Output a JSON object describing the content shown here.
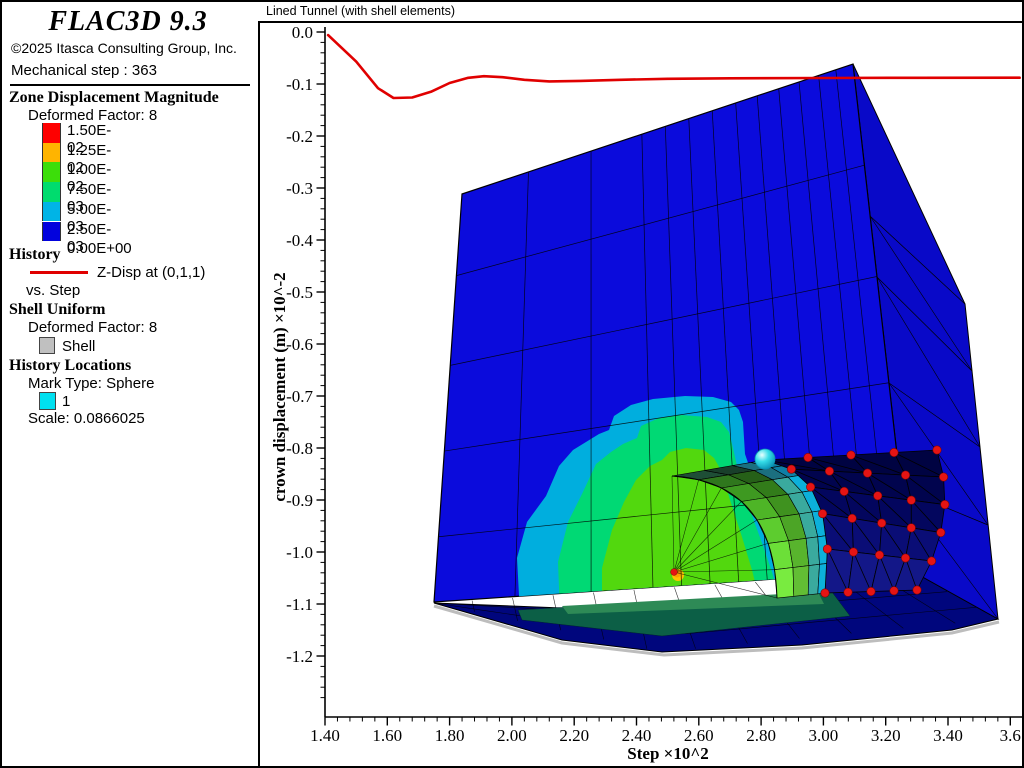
{
  "header": {
    "app_title": "FLAC3D 9.3",
    "copyright": "©2025 Itasca Consulting Group, Inc.",
    "step_label": "Mechanical step : 363"
  },
  "title_bar": {
    "title": "Lined Tunnel (with shell elements)"
  },
  "legend": {
    "zone": {
      "heading": "Zone Displacement Magnitude",
      "deformed_factor": "Deformed Factor: 8",
      "colorscale_labels": [
        "1.50E-02",
        "1.25E-02",
        "1.00E-02",
        "7.50E-03",
        "5.00E-03",
        "2.50E-03",
        "0.00E+00"
      ],
      "colorscale_band_colors": [
        "#fe0000",
        "#ffb400",
        "#3cde0a",
        "#00dc6e",
        "#00b4e6",
        "#0202dd"
      ]
    },
    "history": {
      "heading": "History",
      "series_label": "Z-Disp at (0,1,1)",
      "series_color": "#e00000",
      "vs_label": "vs. Step"
    },
    "shell": {
      "heading": "Shell Uniform",
      "deformed_factor": "Deformed Factor: 8",
      "item_label": "Shell",
      "item_color": "#c0c0c0"
    },
    "history_locations": {
      "heading": "History Locations",
      "mark_type": "Mark Type: Sphere",
      "item_label": "1",
      "item_color": "#00e0f0",
      "scale_label": "Scale: 0.0866025"
    }
  },
  "axes": {
    "x_title": "Step ×10^2",
    "y_title": "crown displacement (m) ×10^-2",
    "x_tick_labels": [
      "1.40",
      "1.60",
      "1.80",
      "2.00",
      "2.20",
      "2.40",
      "2.60",
      "2.80",
      "3.00",
      "3.20",
      "3.40",
      "3.6"
    ],
    "y_tick_labels": [
      "0.0",
      "-0.1",
      "-0.2",
      "-0.3",
      "-0.4",
      "-0.5",
      "-0.6",
      "-0.7",
      "-0.8",
      "-0.9",
      "-1.0",
      "-1.1",
      "-1.2"
    ]
  },
  "chart_data": {
    "type": "line",
    "title": "Lined Tunnel (with shell elements)",
    "xlabel": "Step ×10^2",
    "ylabel": "crown displacement (m) ×10^-2",
    "xlim": [
      1.4,
      3.63
    ],
    "ylim": [
      -1.26,
      0.02
    ],
    "grid": false,
    "legend_position": "left-panel",
    "series": [
      {
        "name": "Z-Disp at (0,1,1)",
        "color": "#e00000",
        "x": [
          1.41,
          1.5,
          1.57,
          1.62,
          1.68,
          1.74,
          1.8,
          1.86,
          1.91,
          1.97,
          2.04,
          2.12,
          2.22,
          2.35,
          2.5,
          2.7,
          3.0,
          3.3,
          3.63
        ],
        "y": [
          -0.006,
          -0.057,
          -0.108,
          -0.127,
          -0.126,
          -0.115,
          -0.098,
          -0.088,
          -0.085,
          -0.087,
          -0.092,
          -0.095,
          -0.094,
          -0.092,
          -0.09,
          -0.089,
          -0.0885,
          -0.088,
          -0.0878
        ]
      }
    ]
  },
  "scene": {
    "block_blue": "#0b0bdc",
    "block_blue_right": "#0909c8",
    "block_bottom": "#00067d",
    "shell_row_fills": [
      "#000342",
      "#01044e",
      "#03065e",
      "#0a0d76",
      "#131788"
    ],
    "contour_cyan": "#00aede",
    "contour_springgreen": "#00d974",
    "contour_lawngreen": "#52d80e",
    "contour_orange": "#ff9f00",
    "floor_teal": "#0c5f46",
    "floor_green": "#2e8a56",
    "arch_row_greens": [
      "#1d4a33",
      "#2d711c",
      "#3b921f",
      "#4aac25",
      "#59c22d",
      "#67d435",
      "#73e03d"
    ],
    "node_red": "#e51414",
    "sphere_cyan": "#35dce8",
    "mesh_line": "#000000",
    "shadow_gray": "#bdbdbd"
  }
}
